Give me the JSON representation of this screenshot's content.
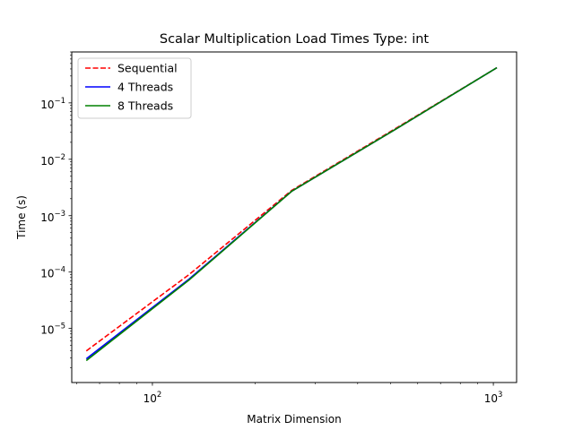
{
  "chart_data": {
    "type": "line",
    "title": "Scalar Multiplication Load Times Type: int",
    "xlabel": "Matrix Dimension",
    "ylabel": "Time (s)",
    "xscale": "log",
    "yscale": "log",
    "xlim": [
      58,
      1170
    ],
    "ylim": [
      1.1e-06,
      0.8
    ],
    "xticks": [
      {
        "value": 100,
        "base": "10",
        "exp": "2"
      },
      {
        "value": 1000,
        "base": "10",
        "exp": "3"
      }
    ],
    "yticks": [
      {
        "value": 1e-05,
        "base": "10",
        "exp": "−5"
      },
      {
        "value": 0.0001,
        "base": "10",
        "exp": "−4"
      },
      {
        "value": 0.001,
        "base": "10",
        "exp": "−3"
      },
      {
        "value": 0.01,
        "base": "10",
        "exp": "−2"
      },
      {
        "value": 0.1,
        "base": "10",
        "exp": "−1"
      }
    ],
    "x": [
      64,
      128,
      256,
      512,
      1024
    ],
    "series": [
      {
        "name": "Sequential",
        "color": "#ff0000",
        "dash": "dashed",
        "values": [
          4e-06,
          9e-05,
          0.0028,
          0.034,
          0.42
        ]
      },
      {
        "name": "4 Threads",
        "color": "#0000ff",
        "dash": "solid",
        "values": [
          2.9e-06,
          7.5e-05,
          0.0027,
          0.033,
          0.42
        ]
      },
      {
        "name": "8 Threads",
        "color": "#008000",
        "dash": "solid",
        "values": [
          2.7e-06,
          7.2e-05,
          0.0027,
          0.033,
          0.42
        ]
      }
    ],
    "legend": "top-left",
    "grid": false
  }
}
